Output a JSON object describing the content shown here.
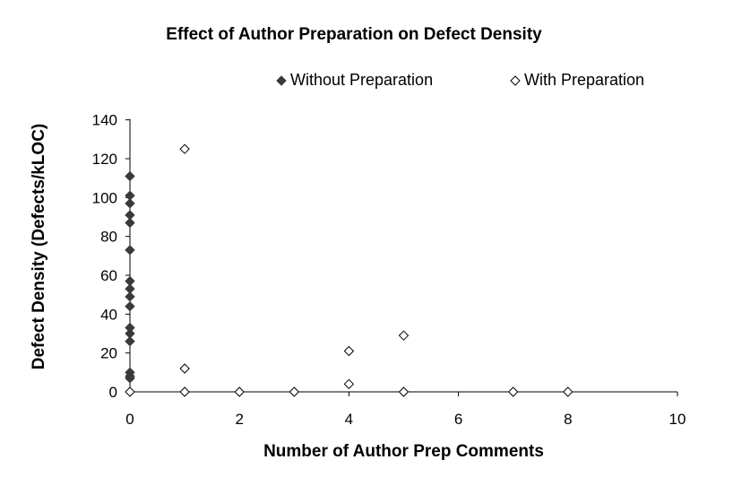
{
  "chart_data": {
    "type": "scatter",
    "title": "Effect of Author Preparation on Defect Density",
    "xlabel": "Number of Author Prep Comments",
    "ylabel": "Defect Density (Defects/kLOC)",
    "xlim": [
      0,
      10
    ],
    "ylim": [
      0,
      150
    ],
    "xticks": [
      0,
      2,
      4,
      6,
      8,
      10
    ],
    "yticks": [
      0,
      20,
      40,
      60,
      80,
      100,
      120,
      140
    ],
    "grid": false,
    "legend_position": "top",
    "series": [
      {
        "name": "Without Preparation",
        "marker": "filled-diamond",
        "color": "#3a3a3a",
        "points": [
          [
            0,
            111
          ],
          [
            0,
            101
          ],
          [
            0,
            97
          ],
          [
            0,
            91
          ],
          [
            0,
            87
          ],
          [
            0,
            73
          ],
          [
            0,
            57
          ],
          [
            0,
            53
          ],
          [
            0,
            49
          ],
          [
            0,
            44
          ],
          [
            0,
            33
          ],
          [
            0,
            30
          ],
          [
            0,
            26
          ],
          [
            0,
            10
          ],
          [
            0,
            8
          ],
          [
            0,
            7
          ]
        ]
      },
      {
        "name": "With Preparation",
        "marker": "hollow-diamond",
        "color": "#000000",
        "points": [
          [
            1,
            125
          ],
          [
            1,
            12
          ],
          [
            1,
            0
          ],
          [
            0,
            0
          ],
          [
            2,
            0
          ],
          [
            3,
            0
          ],
          [
            4,
            21
          ],
          [
            4,
            4
          ],
          [
            5,
            29
          ],
          [
            5,
            0
          ],
          [
            7,
            0
          ],
          [
            8,
            0
          ]
        ]
      }
    ]
  }
}
